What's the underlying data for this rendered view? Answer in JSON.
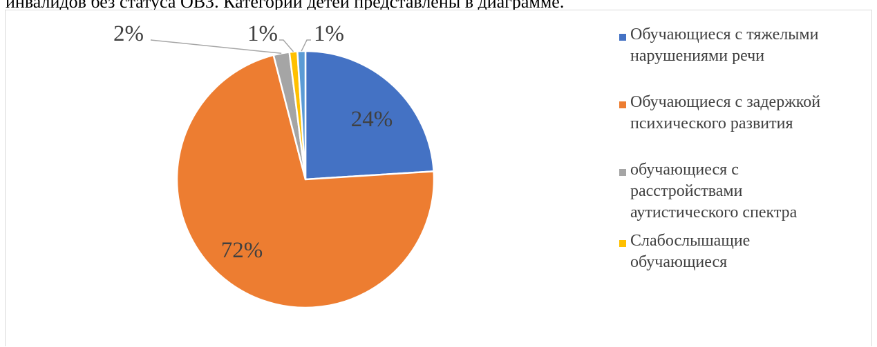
{
  "page": {
    "top_text": "инвалидов без статуса ОВЗ. Категории детей представлены в диаграмме."
  },
  "chart_data": {
    "type": "pie",
    "categories": [
      "Обучающиеся с тяжелыми нарушениями речи",
      "Обучающиеся с задержкой психического развития",
      "обучающиеся с расстройствами аутистического спектра",
      "Слабослышащие обучающиеся",
      ""
    ],
    "legend_lines": [
      "Обучающиеся с тяжелыми\nнарушениями речи",
      "Обучающиеся с задержкой\nпсихического развития",
      "обучающиеся с\nрасстройствами\nаутистического спектра",
      "Слабослышащие\nобучающиеся"
    ],
    "values": [
      24,
      72,
      2,
      1,
      1
    ],
    "labels": [
      "24%",
      "72%",
      "2%",
      "1%",
      "1%"
    ],
    "colors": [
      "#4472c4",
      "#ed7d31",
      "#a5a5a5",
      "#ffc000",
      "#5b9bd5"
    ],
    "legend": "right"
  }
}
